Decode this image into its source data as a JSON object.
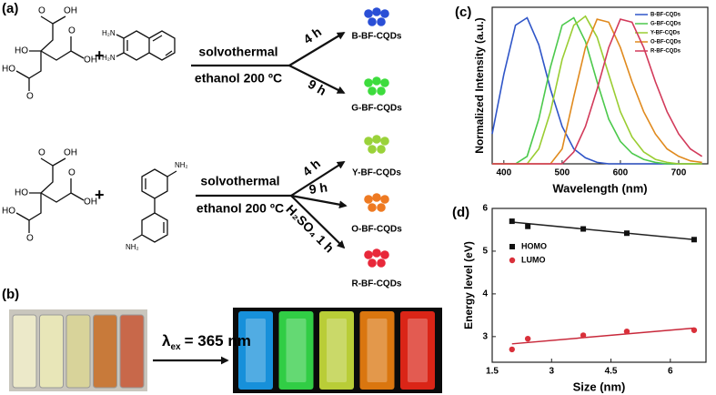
{
  "panel_labels": [
    "(a)",
    "(b)",
    "(c)",
    "(d)"
  ],
  "scheme": {
    "plus": "+",
    "reactions": [
      {
        "acid_labels": [
          "O",
          "OH",
          "HO",
          "O",
          "OH",
          "HO",
          "O"
        ],
        "amine_labels": [
          "H₂N",
          "H₂N"
        ],
        "conditions": [
          "solvothermal",
          "ethanol 200 ºC"
        ],
        "branches": [
          {
            "condition": "4 h",
            "product": "B-BF-CQDs"
          },
          {
            "condition": "9 h",
            "product": "G-BF-CQDs"
          }
        ]
      },
      {
        "acid_labels": [
          "O",
          "OH",
          "HO",
          "O",
          "OH",
          "HO",
          "O"
        ],
        "amine_labels": [
          "NH₂",
          "NH₂"
        ],
        "conditions": [
          "solvothermal",
          "ethanol 200 ºC"
        ],
        "branches": [
          {
            "condition": "4 h",
            "product": "Y-BF-CQDs"
          },
          {
            "condition": "9 h",
            "product": "O-BF-CQDs"
          },
          {
            "condition": "H₂SO₄ 1 h",
            "product": "R-BF-CQDs"
          }
        ]
      }
    ]
  },
  "excitation": {
    "symbol": "λ",
    "subscript": "ex",
    "text": "= 365 nm"
  },
  "chart_data": [
    {
      "type": "line",
      "xlabel": "Wavelength (nm)",
      "ylabel": "Normalized Intensity (a.u.)",
      "x": [
        380,
        400,
        420,
        440,
        460,
        480,
        500,
        520,
        540,
        560,
        580,
        600,
        620,
        640,
        660,
        680,
        700,
        720,
        740
      ],
      "xlim": [
        380,
        750
      ],
      "xticks": [
        400,
        500,
        600,
        700
      ],
      "ylim": [
        0,
        1.05
      ],
      "legend": "top-right",
      "series": [
        {
          "name": "B-BF-CQDs",
          "color": "#2f55c8",
          "values": [
            0.2,
            0.6,
            0.93,
            0.98,
            0.8,
            0.5,
            0.25,
            0.1,
            0.04,
            0.01,
            0,
            0,
            0,
            0,
            0,
            0,
            0,
            0,
            0
          ]
        },
        {
          "name": "G-BF-CQDs",
          "color": "#4cc94c",
          "values": [
            0,
            0,
            0,
            0.05,
            0.3,
            0.65,
            0.93,
            0.98,
            0.82,
            0.55,
            0.3,
            0.15,
            0.07,
            0.03,
            0.01,
            0,
            0,
            0,
            0
          ]
        },
        {
          "name": "Y-BF-CQDs",
          "color": "#9acd32",
          "values": [
            0,
            0,
            0,
            0,
            0.1,
            0.35,
            0.7,
            0.93,
            0.99,
            0.85,
            0.6,
            0.35,
            0.18,
            0.08,
            0.03,
            0.01,
            0,
            0,
            0
          ]
        },
        {
          "name": "O-BF-CQDs",
          "color": "#e08a1e",
          "values": [
            0,
            0,
            0,
            0,
            0,
            0,
            0.1,
            0.45,
            0.78,
            0.97,
            0.95,
            0.78,
            0.55,
            0.35,
            0.2,
            0.1,
            0.05,
            0.02,
            0.01
          ]
        },
        {
          "name": "R-BF-CQDs",
          "color": "#d23a5a",
          "values": [
            0,
            0,
            0,
            0,
            0,
            0,
            0,
            0.08,
            0.25,
            0.5,
            0.78,
            0.97,
            0.95,
            0.78,
            0.55,
            0.35,
            0.2,
            0.1,
            0.05
          ]
        }
      ]
    },
    {
      "type": "scatter",
      "xlabel": "Size (nm)",
      "ylabel": "Energy level (eV)",
      "x": [
        2.0,
        2.4,
        3.8,
        4.9,
        6.6
      ],
      "xlim": [
        1.5,
        6.9
      ],
      "xticks": [
        1.5,
        3.0,
        4.5,
        6.0
      ],
      "ylim": [
        2.4,
        6
      ],
      "yticks": [
        3,
        4,
        5,
        6
      ],
      "legend": "top-left",
      "series": [
        {
          "name": "HOMO",
          "color": "#111111",
          "marker": "square",
          "values": [
            5.7,
            5.58,
            5.52,
            5.42,
            5.27
          ]
        },
        {
          "name": "LUMO",
          "color": "#d9303a",
          "marker": "circle",
          "values": [
            2.7,
            2.95,
            3.03,
            3.12,
            3.15
          ]
        }
      ],
      "fits": [
        {
          "color": "#222222",
          "x": [
            2.0,
            6.6
          ],
          "values": [
            5.68,
            5.27
          ]
        },
        {
          "color": "#c8283a",
          "x": [
            2.0,
            6.6
          ],
          "values": [
            2.83,
            3.2
          ]
        }
      ]
    }
  ]
}
